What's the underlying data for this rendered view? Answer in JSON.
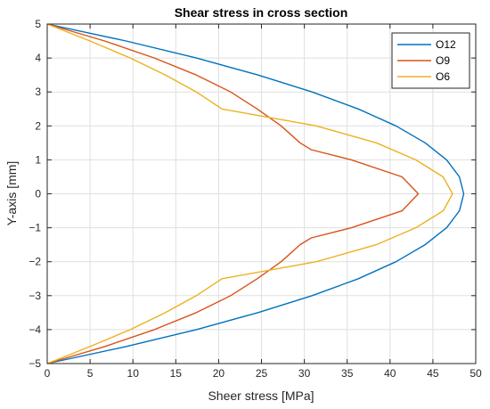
{
  "chart_data": {
    "type": "line",
    "title": "Shear stress in cross section",
    "xlabel": "Sheer stress [MPa]",
    "ylabel": "Y-axis [mm]",
    "xlim": [
      0,
      50
    ],
    "ylim": [
      -5,
      5
    ],
    "xticks": [
      "0",
      "5",
      "10",
      "15",
      "20",
      "25",
      "30",
      "35",
      "40",
      "45",
      "50"
    ],
    "yticks": [
      "5",
      "4",
      "3",
      "2",
      "1",
      "0",
      "−1",
      "−2",
      "−3",
      "−4",
      "−5"
    ],
    "grid": true,
    "legend_position": "top-right",
    "series": [
      {
        "name": "O12",
        "color": "#0072BD",
        "y": [
          5,
          4.5,
          4,
          3.5,
          3,
          2.5,
          2,
          1.5,
          1,
          0.5,
          0,
          -0.5,
          -1,
          -1.5,
          -2,
          -2.5,
          -3,
          -3.5,
          -4,
          -4.5,
          -5
        ],
        "x": [
          0,
          9.2,
          17.4,
          24.6,
          30.9,
          36.3,
          40.7,
          44.1,
          46.6,
          48.1,
          48.6,
          48.1,
          46.6,
          44.1,
          40.7,
          36.3,
          30.9,
          24.6,
          17.4,
          9.2,
          0
        ]
      },
      {
        "name": "O9",
        "color": "#D95319",
        "y": [
          5,
          4.5,
          4,
          3.5,
          3,
          2.5,
          2,
          1.5,
          1.3,
          1,
          0.5,
          0,
          -0.5,
          -1,
          -1.3,
          -1.5,
          -2,
          -2.5,
          -3,
          -3.5,
          -4,
          -4.5,
          -5
        ],
        "x": [
          0,
          6.7,
          12.5,
          17.4,
          21.4,
          24.5,
          27.3,
          29.5,
          30.8,
          35.5,
          41.4,
          43.3,
          41.4,
          35.5,
          30.8,
          29.5,
          27.3,
          24.5,
          21.4,
          17.4,
          12.5,
          6.7,
          0
        ]
      },
      {
        "name": "O6",
        "color": "#EDB120",
        "y": [
          5,
          4.5,
          4,
          3.5,
          3,
          2.5,
          2,
          1.5,
          1,
          0.5,
          0,
          -0.5,
          -1,
          -1.5,
          -2,
          -2.5,
          -3,
          -3.5,
          -4,
          -4.5,
          -5
        ],
        "x": [
          0,
          5.0,
          9.7,
          13.8,
          17.4,
          20.4,
          31.4,
          38.4,
          43.0,
          46.2,
          47.3,
          46.2,
          43.0,
          38.4,
          31.4,
          20.4,
          17.4,
          13.8,
          9.7,
          5.0,
          0
        ]
      }
    ]
  }
}
